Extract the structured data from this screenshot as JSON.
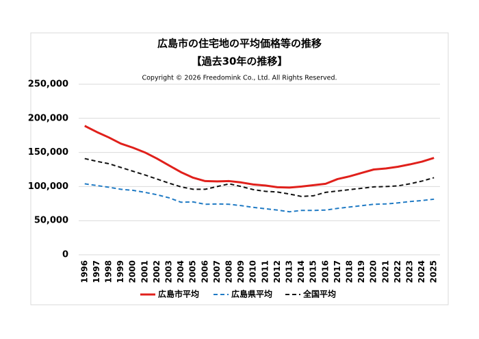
{
  "chart_data": {
    "type": "line",
    "title": "広島市の住宅地の平均価格等の推移",
    "subtitle": "【過去30年の推移】",
    "copyright": "Copyright © 2026 Freedomink Co., Ltd. All Rights Reserved.",
    "categories": [
      "1996",
      "1997",
      "1998",
      "1999",
      "2000",
      "2001",
      "2002",
      "2003",
      "2004",
      "2005",
      "2006",
      "2007",
      "2008",
      "2009",
      "2010",
      "2011",
      "2012",
      "2013",
      "2014",
      "2015",
      "2016",
      "2017",
      "2018",
      "2019",
      "2020",
      "2021",
      "2022",
      "2023",
      "2024",
      "2025"
    ],
    "series": [
      {
        "name": "広島市平均",
        "color": "#e0201b",
        "dash": "solid",
        "values": [
          189000,
          180000,
          172000,
          163000,
          157000,
          150000,
          141000,
          131000,
          121000,
          113000,
          108000,
          107500,
          108000,
          106000,
          103000,
          101500,
          99000,
          98500,
          100000,
          102000,
          104000,
          111000,
          115000,
          120000,
          125000,
          126500,
          129000,
          132500,
          136500,
          142000
        ]
      },
      {
        "name": "広島県平均",
        "color": "#1f7ac4",
        "dash": "dashed",
        "values": [
          104000,
          101500,
          99000,
          96000,
          94500,
          91500,
          88000,
          83500,
          77000,
          77500,
          74000,
          74500,
          74000,
          72000,
          69500,
          67500,
          65500,
          63000,
          65000,
          65000,
          65500,
          68000,
          70000,
          72000,
          74000,
          74500,
          76000,
          78000,
          79500,
          81500
        ]
      },
      {
        "name": "全国平均",
        "color": "#111111",
        "dash": "dashed",
        "values": [
          141000,
          137000,
          133500,
          128000,
          122500,
          117000,
          111000,
          105000,
          99500,
          96000,
          96000,
          100000,
          104000,
          100000,
          95500,
          93000,
          92000,
          89000,
          85500,
          86500,
          91500,
          93500,
          95500,
          97500,
          99500,
          100000,
          101000,
          104000,
          108000,
          113000
        ]
      }
    ],
    "ylim": [
      0,
      250000
    ],
    "yticks": [
      0,
      {
        "value": 50000,
        "label": "50,000"
      },
      {
        "value": 100000,
        "label": "100,000"
      },
      {
        "value": 150000,
        "label": "150,000"
      },
      {
        "value": 200000,
        "label": "200,000"
      },
      {
        "value": 250000,
        "label": "250,000"
      }
    ],
    "grid": true,
    "legend": "bottom"
  }
}
